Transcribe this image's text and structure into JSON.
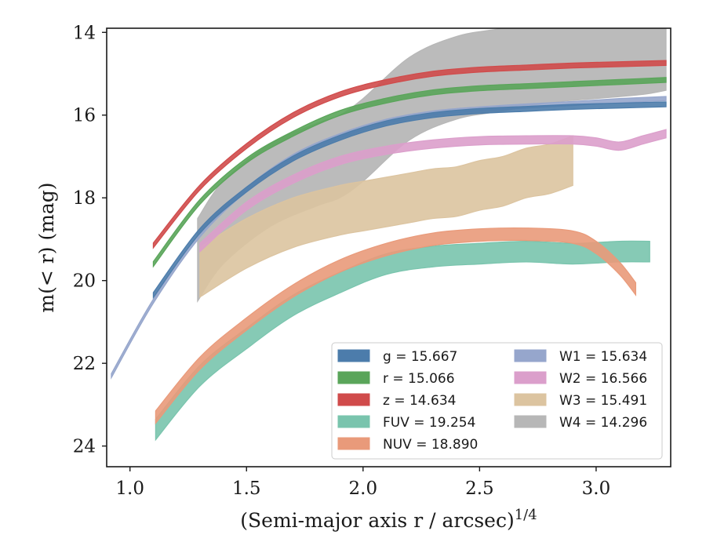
{
  "chart_data": {
    "type": "line",
    "xlabel": "(Semi-major axis r / arcsec)",
    "xlabel_exponent": "1/4",
    "ylabel": "m(< r) (mag)",
    "xlim": [
      0.9,
      3.32
    ],
    "ylim": [
      24.5,
      13.9
    ],
    "y_inverted": true,
    "grid": false,
    "legend_position": "lower-right",
    "x_ticks": [
      {
        "value": 1.0,
        "label": "1.0"
      },
      {
        "value": 1.5,
        "label": "1.5"
      },
      {
        "value": 2.0,
        "label": "2.0"
      },
      {
        "value": 2.5,
        "label": "2.5"
      },
      {
        "value": 3.0,
        "label": "3.0"
      }
    ],
    "y_ticks": [
      {
        "value": 14,
        "label": "14"
      },
      {
        "value": 16,
        "label": "16"
      },
      {
        "value": 18,
        "label": "18"
      },
      {
        "value": 20,
        "label": "20"
      },
      {
        "value": 22,
        "label": "22"
      },
      {
        "value": 24,
        "label": "24"
      }
    ],
    "series": [
      {
        "name": "g",
        "legend": "g = 15.667",
        "color": "#4c7cab",
        "x": [
          1.1,
          1.3,
          1.5,
          1.7,
          1.9,
          2.1,
          2.3,
          2.5,
          2.7,
          2.9,
          3.1,
          3.3
        ],
        "y": [
          20.35,
          18.8,
          17.8,
          17.05,
          16.55,
          16.2,
          16.0,
          15.9,
          15.85,
          15.8,
          15.77,
          15.74
        ],
        "band": 0.06
      },
      {
        "name": "r",
        "legend": "r = 15.066",
        "color": "#5aa55a",
        "x": [
          1.1,
          1.3,
          1.5,
          1.7,
          1.9,
          2.1,
          2.3,
          2.5,
          2.7,
          2.9,
          3.1,
          3.3
        ],
        "y": [
          19.6,
          18.1,
          17.1,
          16.45,
          15.95,
          15.65,
          15.45,
          15.35,
          15.3,
          15.25,
          15.2,
          15.15
        ],
        "band": 0.06
      },
      {
        "name": "z",
        "legend": "z = 14.634",
        "color": "#d04b4b",
        "x": [
          1.1,
          1.3,
          1.5,
          1.7,
          1.9,
          2.1,
          2.3,
          2.5,
          2.7,
          2.9,
          3.1,
          3.3
        ],
        "y": [
          19.15,
          17.75,
          16.75,
          16.0,
          15.5,
          15.2,
          15.0,
          14.9,
          14.85,
          14.8,
          14.77,
          14.74
        ],
        "band": 0.06
      },
      {
        "name": "FUV",
        "legend": "FUV = 19.254",
        "color": "#79c4ad",
        "x": [
          1.11,
          1.3,
          1.5,
          1.7,
          1.9,
          2.1,
          2.3,
          2.5,
          2.7,
          2.9,
          3.1,
          3.23
        ],
        "y": [
          23.6,
          22.3,
          21.4,
          20.6,
          20.05,
          19.6,
          19.42,
          19.35,
          19.3,
          19.35,
          19.3,
          19.3
        ],
        "band": 0.25
      },
      {
        "name": "NUV",
        "legend": "NUV = 18.890",
        "color": "#e99a7a",
        "x": [
          1.11,
          1.3,
          1.5,
          1.7,
          1.9,
          2.1,
          2.3,
          2.5,
          2.7,
          2.9,
          3.0,
          3.1,
          3.17
        ],
        "y": [
          23.3,
          22.0,
          21.05,
          20.25,
          19.65,
          19.25,
          19.0,
          18.9,
          18.88,
          18.95,
          19.2,
          19.7,
          20.2
        ],
        "band": 0.15
      },
      {
        "name": "W1",
        "legend": "W1 = 15.634",
        "color": "#96a6cc",
        "x": [
          0.92,
          1.1,
          1.3,
          1.5,
          1.7,
          1.9,
          2.1,
          2.3,
          2.5,
          2.7,
          2.9,
          3.1,
          3.3
        ],
        "y": [
          22.3,
          20.5,
          18.9,
          17.8,
          17.0,
          16.5,
          16.15,
          15.95,
          15.85,
          15.78,
          15.72,
          15.65,
          15.6
        ],
        "band": 0.05
      },
      {
        "name": "W2",
        "legend": "W2 = 16.566",
        "color": "#db9fcb",
        "x": [
          1.3,
          1.5,
          1.7,
          1.9,
          2.1,
          2.3,
          2.5,
          2.7,
          2.9,
          3.0,
          3.1,
          3.2,
          3.3
        ],
        "y": [
          19.2,
          18.2,
          17.55,
          17.1,
          16.85,
          16.7,
          16.62,
          16.6,
          16.6,
          16.65,
          16.75,
          16.6,
          16.45
        ],
        "band": 0.1
      },
      {
        "name": "W3",
        "legend": "W3 = 15.491",
        "color": "#dcc4a0",
        "x": [
          1.3,
          1.5,
          1.7,
          1.9,
          2.0,
          2.1,
          2.2,
          2.3,
          2.4,
          2.5,
          2.6,
          2.7,
          2.8,
          2.9
        ],
        "y": [
          19.8,
          19.1,
          18.6,
          18.3,
          18.2,
          18.1,
          18.0,
          17.9,
          17.85,
          17.7,
          17.6,
          17.4,
          17.3,
          17.1
        ],
        "band": 0.6
      },
      {
        "name": "W4",
        "legend": "W4 = 14.296",
        "color": "#b7b7b7",
        "x": [
          1.29,
          1.4,
          1.6,
          1.8,
          1.9,
          2.0,
          2.2,
          2.4,
          2.6,
          2.8,
          3.0,
          3.2,
          3.3
        ],
        "y": [
          19.5,
          18.6,
          17.7,
          17.2,
          17.0,
          16.6,
          15.6,
          15.1,
          14.9,
          14.7,
          14.6,
          14.5,
          14.4
        ],
        "band": 1.0
      }
    ]
  }
}
